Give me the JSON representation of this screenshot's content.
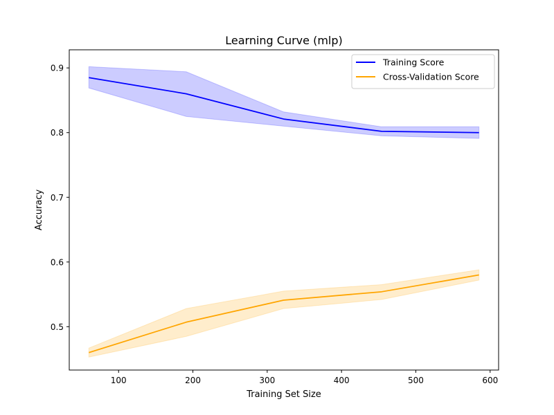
{
  "chart_data": {
    "type": "line",
    "title": "Learning Curve (mlp)",
    "xlabel": "Training Set Size",
    "ylabel": "Accuracy",
    "xlim": [
      33.6,
      611.4
    ],
    "ylim": [
      0.433,
      0.928
    ],
    "x_ticks": [
      100,
      200,
      300,
      400,
      500,
      600
    ],
    "y_ticks": [
      0.5,
      0.6,
      0.7,
      0.8,
      0.9
    ],
    "x_tick_labels": [
      "100",
      "200",
      "300",
      "400",
      "500",
      "600"
    ],
    "y_tick_labels": [
      "0.5",
      "0.6",
      "0.7",
      "0.8",
      "0.9"
    ],
    "grid": false,
    "legend": {
      "position": "top-right"
    },
    "x": [
      60,
      191,
      322,
      454,
      585
    ],
    "series": [
      {
        "name": "Training Score",
        "color": "#0000ff",
        "band_color": "#0000ff",
        "values": [
          0.885,
          0.86,
          0.821,
          0.802,
          0.8
        ],
        "lower": [
          0.869,
          0.825,
          0.81,
          0.795,
          0.791
        ],
        "upper": [
          0.902,
          0.894,
          0.832,
          0.809,
          0.809
        ]
      },
      {
        "name": "Cross-Validation Score",
        "color": "#ffa500",
        "band_color": "#ffa500",
        "values": [
          0.46,
          0.507,
          0.541,
          0.554,
          0.58
        ],
        "lower": [
          0.453,
          0.485,
          0.528,
          0.542,
          0.572
        ],
        "upper": [
          0.467,
          0.528,
          0.555,
          0.565,
          0.588
        ]
      }
    ]
  }
}
